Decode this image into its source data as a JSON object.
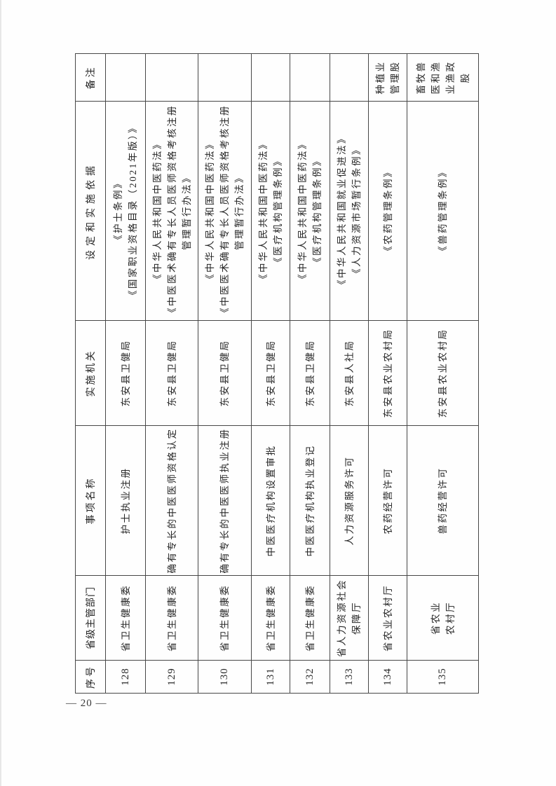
{
  "page": {
    "number_label": "— 20 —"
  },
  "table": {
    "headers": {
      "no": "序号",
      "dept": "省级主管部门",
      "name": "事项名称",
      "agency": "实施机关",
      "basis": "设定和实施依据",
      "remark": "备注"
    },
    "rows": [
      {
        "no": "128",
        "dept_lines": [
          "省卫生健康委"
        ],
        "name_lines": [
          "护士执业注册"
        ],
        "agency_lines": [
          "东安县卫健局"
        ],
        "basis_lines": [
          "《护士条例》",
          "《国家职业资格目录（2021年版）》"
        ],
        "remark_lines": []
      },
      {
        "no": "129",
        "dept_lines": [
          "省卫生健康委"
        ],
        "name_lines": [
          "确有专长的中医医师资格认定"
        ],
        "agency_lines": [
          "东安县卫健局"
        ],
        "basis_lines": [
          "《中华人民共和国中医药法》",
          "《中医医术确有专长人员医师资格考核注册",
          "管理暂行办法》"
        ],
        "remark_lines": []
      },
      {
        "no": "130",
        "dept_lines": [
          "省卫生健康委"
        ],
        "name_lines": [
          "确有专长的中医医师执业注册"
        ],
        "agency_lines": [
          "东安县卫健局"
        ],
        "basis_lines": [
          "《中华人民共和国中医药法》",
          "《中医医术确有专长人员医师资格考核注册",
          "管理暂行办法》"
        ],
        "remark_lines": []
      },
      {
        "no": "131",
        "dept_lines": [
          "省卫生健康委"
        ],
        "name_lines": [
          "中医医疗机构设置审批"
        ],
        "agency_lines": [
          "东安县卫健局"
        ],
        "basis_lines": [
          "《中华人民共和国中医药法》",
          "《医疗机构管理条例》"
        ],
        "remark_lines": []
      },
      {
        "no": "132",
        "dept_lines": [
          "省卫生健康委"
        ],
        "name_lines": [
          "中医医疗机构执业登记"
        ],
        "agency_lines": [
          "东安县卫健局"
        ],
        "basis_lines": [
          "《中华人民共和国中医药法》",
          "《医疗机构管理条例》"
        ],
        "remark_lines": []
      },
      {
        "no": "133",
        "dept_lines": [
          "省人力资源社会",
          "保障厅"
        ],
        "name_lines": [
          "人力资源服务许可"
        ],
        "agency_lines": [
          "东安县人社局"
        ],
        "basis_lines": [
          "《中华人民共和国就业促进法》",
          "《人力资源市场暂行条例》"
        ],
        "remark_lines": []
      },
      {
        "no": "134",
        "dept_lines": [
          "省农业农村厅"
        ],
        "name_lines": [
          "农药经营许可"
        ],
        "agency_lines": [
          "东安县农业农村局"
        ],
        "basis_lines": [
          "《农药管理条例》"
        ],
        "remark_lines": [
          "种植业",
          "管理股"
        ]
      },
      {
        "no": "135",
        "dept_lines": [
          "省农业",
          "农村厅"
        ],
        "name_lines": [
          "兽药经营许可"
        ],
        "agency_lines": [
          "东安县农业农村局"
        ],
        "basis_lines": [
          "《兽药管理条例》"
        ],
        "remark_lines": [
          "畜牧兽",
          "医和渔",
          "业渔政",
          "股"
        ]
      }
    ]
  }
}
